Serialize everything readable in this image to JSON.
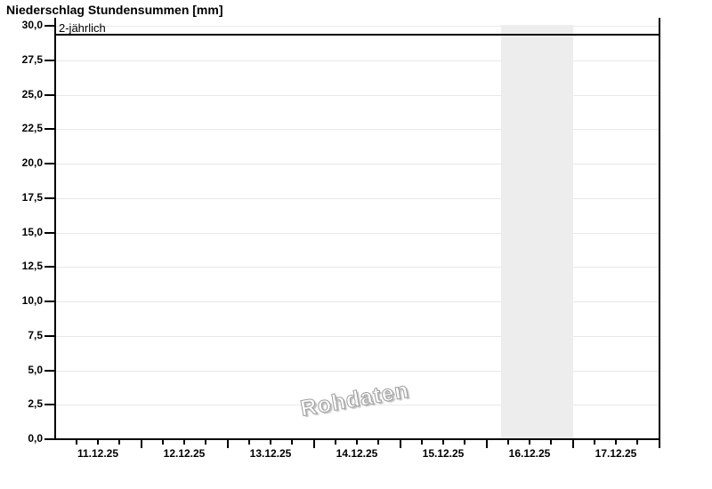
{
  "title": "Niederschlag Stundensummen [mm]",
  "watermark": "Rohdaten",
  "threshold": {
    "label": "2-jährlich"
  },
  "colors": {
    "background": "#ffffff",
    "grid": "#e8e8e8",
    "highlight_band": "#ededed",
    "axis": "#000000",
    "threshold_line": "#000000",
    "watermark_stroke": "#9e9e9e"
  },
  "chart_data": {
    "type": "bar",
    "title": "Niederschlag Stundensummen [mm]",
    "xlabel": "",
    "ylabel": "",
    "x_tick_labels": [
      "11.12.25",
      "12.12.25",
      "13.12.25",
      "14.12.25",
      "15.12.25",
      "16.12.25",
      "17.12.25"
    ],
    "y_tick_labels": [
      "0,0",
      "2,5",
      "5,0",
      "7,5",
      "10,0",
      "12,5",
      "15,0",
      "17,5",
      "20,0",
      "22,5",
      "25,0",
      "27,5",
      "30,0"
    ],
    "y_tick_values": [
      0,
      2.5,
      5,
      7.5,
      10,
      12.5,
      15,
      17.5,
      20,
      22.5,
      25,
      27.5,
      30
    ],
    "ylim": [
      0,
      30.6
    ],
    "x_days": 7,
    "minor_x_tick_interval_hours": 6,
    "grid": "horizontal",
    "series": [
      {
        "name": "Niederschlag Stundensummen",
        "values": [],
        "note": "no precipitation bars visible, all hourly sums are 0"
      }
    ],
    "threshold_line": {
      "label": "2-jährlich",
      "value": 29.4,
      "color": "#000000"
    },
    "highlight_band": {
      "start_day": "16.12.25",
      "start_day_index": 5,
      "start_hour": 4,
      "end_day_index": 6,
      "end_hour": 0,
      "color": "#ededed"
    },
    "watermark": "Rohdaten"
  }
}
